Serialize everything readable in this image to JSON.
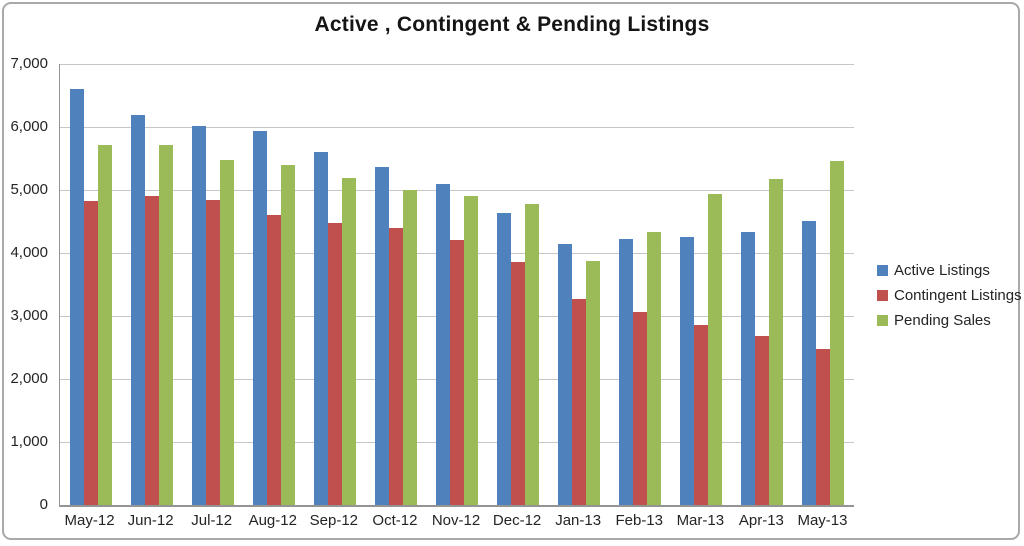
{
  "chart_data": {
    "type": "bar",
    "title": "Active , Contingent & Pending Listings",
    "xlabel": "",
    "ylabel": "",
    "ylim": [
      0,
      7000
    ],
    "ytick_interval": 1000,
    "ytick_labels": [
      "0",
      "1,000",
      "2,000",
      "3,000",
      "4,000",
      "5,000",
      "6,000",
      "7,000"
    ],
    "grid": true,
    "legend_position": "right",
    "categories": [
      "May-12",
      "Jun-12",
      "Jul-12",
      "Aug-12",
      "Sep-12",
      "Oct-12",
      "Nov-12",
      "Dec-12",
      "Jan-13",
      "Feb-13",
      "Mar-13",
      "Apr-13",
      "May-13"
    ],
    "series": [
      {
        "name": "Active Listings",
        "color": "#4F81BD",
        "values": [
          6600,
          6190,
          6010,
          5940,
          5600,
          5370,
          5090,
          4640,
          4140,
          4230,
          4260,
          4340,
          4510
        ]
      },
      {
        "name": "Contingent Listings",
        "color": "#C0504D",
        "values": [
          4830,
          4900,
          4840,
          4600,
          4470,
          4400,
          4200,
          3860,
          3270,
          3060,
          2860,
          2680,
          2480
        ]
      },
      {
        "name": "Pending Sales",
        "color": "#9BBB59",
        "values": [
          5710,
          5720,
          5470,
          5390,
          5190,
          5000,
          4910,
          4780,
          3880,
          4340,
          4930,
          5170,
          5460
        ]
      }
    ]
  },
  "colors": {
    "gridline": "#c6c6c6",
    "axis": "#949494",
    "frame_border": "#a9a9a9",
    "text": "#242424"
  }
}
